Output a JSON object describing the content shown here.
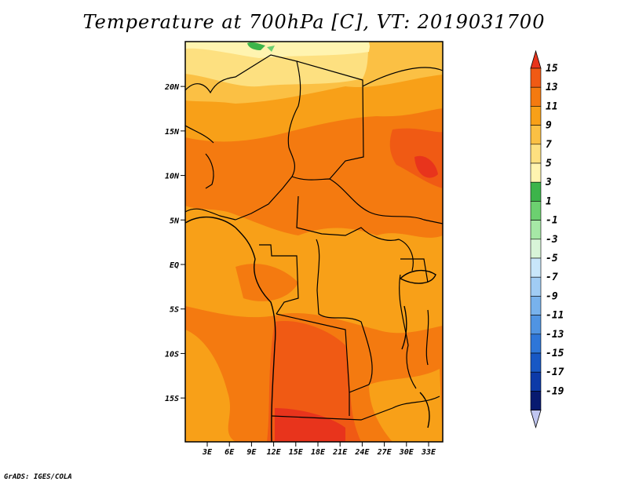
{
  "title": "Temperature at 700hPa [C], VT: 2019031700",
  "footer": "GrADS: IGES/COLA",
  "map": {
    "lat_labels": [
      "20N",
      "15N",
      "10N",
      "5N",
      "EQ",
      "5S",
      "10S",
      "15S"
    ],
    "lon_labels": [
      "3E",
      "6E",
      "9E",
      "12E",
      "15E",
      "18E",
      "21E",
      "24E",
      "27E",
      "30E",
      "33E"
    ],
    "lat_values": [
      20,
      15,
      10,
      5,
      0,
      -5,
      -10,
      -15
    ],
    "lon_values": [
      3,
      6,
      9,
      12,
      15,
      18,
      21,
      24,
      27,
      30,
      33
    ],
    "lat_range": [
      -20,
      25
    ],
    "lon_range": [
      0,
      35
    ]
  },
  "colorbar": {
    "labels": [
      "15",
      "13",
      "11",
      "9",
      "7",
      "5",
      "3",
      "1",
      "-1",
      "-3",
      "-5",
      "-7",
      "-9",
      "-11",
      "-13",
      "-15",
      "-17",
      "-19"
    ],
    "colors": [
      "#e8341c",
      "#f05a14",
      "#f47a10",
      "#f8a018",
      "#fbc044",
      "#fde080",
      "#fff4b0",
      "#3cb44a",
      "#6cd070",
      "#a6e8a6",
      "#d8f4d8",
      "#c8e6fa",
      "#a0ccf4",
      "#78b2ec",
      "#5094e2",
      "#2e76d8",
      "#1858c4",
      "#0c3aa8",
      "#081a70",
      "#c0c6f0"
    ]
  }
}
